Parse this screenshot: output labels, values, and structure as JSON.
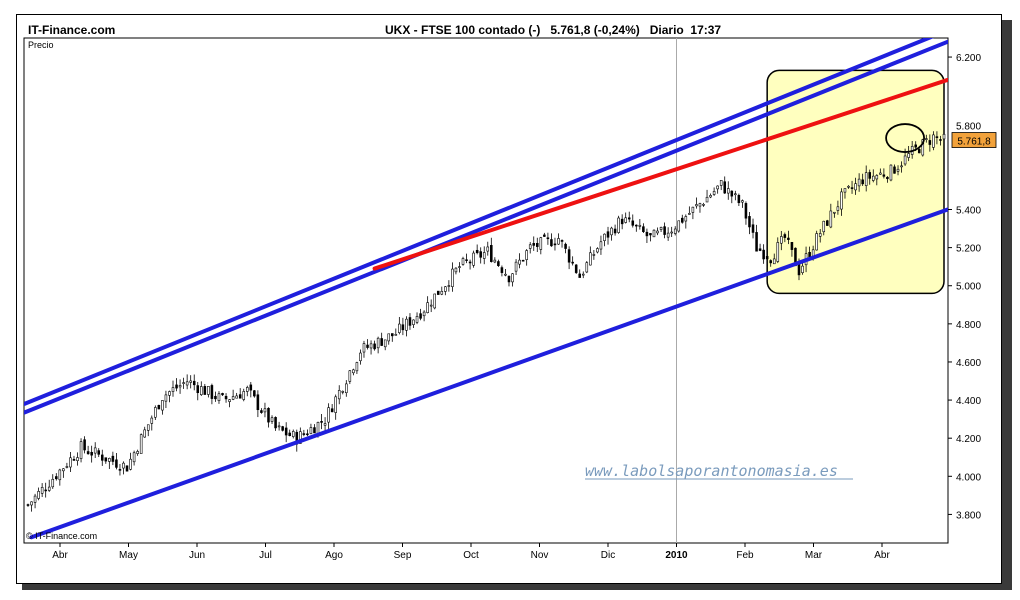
{
  "header": {
    "brand": "IT-Finance.com",
    "title": "UKX - FTSE 100 contado (-)   5.761,8 (-0,24%)   Diario  17:37"
  },
  "chart_data": {
    "type": "candlestick",
    "panel_label": "Precio",
    "ylim": [
      3650,
      6300
    ],
    "y_ticks": [
      {
        "value": 3800,
        "label": "3.800"
      },
      {
        "value": 4000,
        "label": "4.000"
      },
      {
        "value": 4200,
        "label": "4.200"
      },
      {
        "value": 4400,
        "label": "4.400"
      },
      {
        "value": 4600,
        "label": "4.600"
      },
      {
        "value": 4800,
        "label": "4.800"
      },
      {
        "value": 5000,
        "label": "5.000"
      },
      {
        "value": 5200,
        "label": "5.200"
      },
      {
        "value": 5400,
        "label": "5.400"
      },
      {
        "value": 6200,
        "label": "6.200"
      }
    ],
    "x_ticks": [
      {
        "label": "Abr",
        "bold": false
      },
      {
        "label": "May",
        "bold": false
      },
      {
        "label": "Jun",
        "bold": false
      },
      {
        "label": "Jul",
        "bold": false
      },
      {
        "label": "Ago",
        "bold": false
      },
      {
        "label": "Sep",
        "bold": false
      },
      {
        "label": "Oct",
        "bold": false
      },
      {
        "label": "Nov",
        "bold": false
      },
      {
        "label": "Dic",
        "bold": false
      },
      {
        "label": "2010",
        "bold": true
      },
      {
        "label": "Feb",
        "bold": false
      },
      {
        "label": "Mar",
        "bold": false
      },
      {
        "label": "Abr",
        "bold": false
      }
    ],
    "year_divider_index": 9,
    "x_count": 260,
    "monthly_closes": [
      {
        "x": 0,
        "y": 3850
      },
      {
        "x": 15,
        "y": 4150
      },
      {
        "x": 28,
        "y": 4050
      },
      {
        "x": 38,
        "y": 4420
      },
      {
        "x": 45,
        "y": 4500
      },
      {
        "x": 55,
        "y": 4400
      },
      {
        "x": 62,
        "y": 4450
      },
      {
        "x": 70,
        "y": 4250
      },
      {
        "x": 76,
        "y": 4200
      },
      {
        "x": 84,
        "y": 4300
      },
      {
        "x": 94,
        "y": 4660
      },
      {
        "x": 104,
        "y": 4750
      },
      {
        "x": 112,
        "y": 4880
      },
      {
        "x": 122,
        "y": 5100
      },
      {
        "x": 130,
        "y": 5180
      },
      {
        "x": 136,
        "y": 5050
      },
      {
        "x": 142,
        "y": 5200
      },
      {
        "x": 150,
        "y": 5250
      },
      {
        "x": 156,
        "y": 5050
      },
      {
        "x": 162,
        "y": 5230
      },
      {
        "x": 168,
        "y": 5350
      },
      {
        "x": 176,
        "y": 5250
      },
      {
        "x": 182,
        "y": 5300
      },
      {
        "x": 190,
        "y": 5430
      },
      {
        "x": 196,
        "y": 5530
      },
      {
        "x": 202,
        "y": 5420
      },
      {
        "x": 206,
        "y": 5200
      },
      {
        "x": 210,
        "y": 5150
      },
      {
        "x": 214,
        "y": 5250
      },
      {
        "x": 218,
        "y": 5080
      },
      {
        "x": 224,
        "y": 5280
      },
      {
        "x": 230,
        "y": 5460
      },
      {
        "x": 236,
        "y": 5560
      },
      {
        "x": 244,
        "y": 5600
      },
      {
        "x": 250,
        "y": 5700
      },
      {
        "x": 256,
        "y": 5780
      },
      {
        "x": 259,
        "y": 5762
      }
    ],
    "last_value_label": "5.761,8",
    "partial_tick_label": "5.800",
    "trendlines": [
      {
        "color": "#1f1fdd",
        "from": {
          "x": -1,
          "y": 4380
        },
        "to": {
          "x": 260,
          "y": 6340
        }
      },
      {
        "color": "#1f1fdd",
        "from": {
          "x": -1,
          "y": 4335
        },
        "to": {
          "x": 260,
          "y": 6280
        }
      },
      {
        "color": "#1f1fdd",
        "from": {
          "x": 1,
          "y": 3680
        },
        "to": {
          "x": 260,
          "y": 5400
        }
      },
      {
        "color": "#ee1111",
        "from": {
          "x": 98,
          "y": 5090
        },
        "to": {
          "x": 260,
          "y": 6080
        }
      }
    ],
    "highlight_box": {
      "from": {
        "x": 209,
        "y": 6130
      },
      "to": {
        "x": 259,
        "y": 4960
      },
      "fill": "#ffffbf"
    },
    "highlight_circle": {
      "center": {
        "x": 248,
        "y": 5775
      },
      "rx": 10,
      "ry": 70
    },
    "watermark": "www.labolsaporantonomasia.es",
    "copyright": "© IT-Finance.com"
  }
}
